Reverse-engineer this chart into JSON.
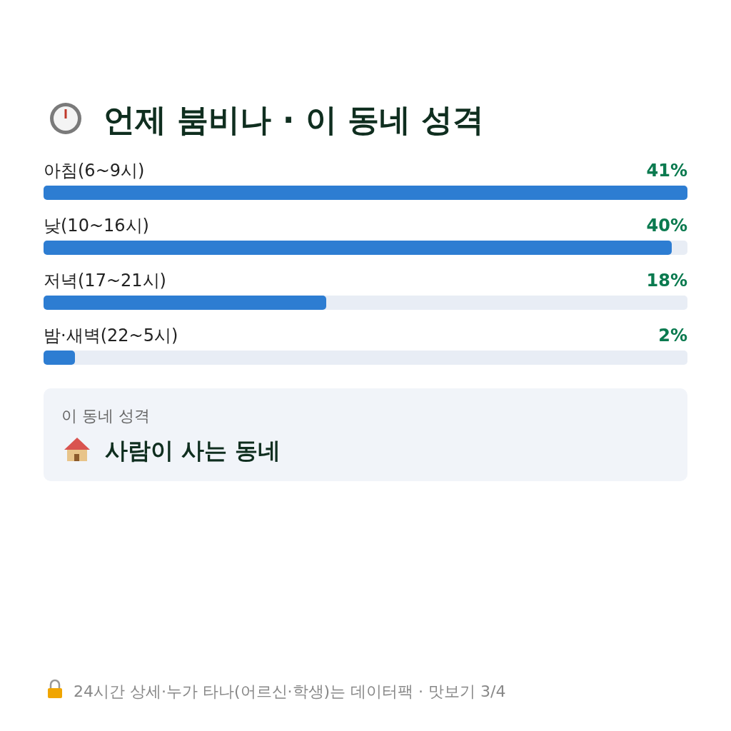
{
  "chart_data": {
    "type": "bar",
    "orientation": "horizontal",
    "title": "언제 붐비나 · 이 동네 성격",
    "categories": [
      "아침(6~9시)",
      "낮(10~16시)",
      "저녁(17~21시)",
      "밤·새벽(22~5시)"
    ],
    "values": [
      41,
      40,
      18,
      2
    ],
    "value_labels": [
      "41%",
      "40%",
      "18%",
      "2%"
    ],
    "color": "#2d7dd2",
    "annotations": [
      "이 동네 성격",
      "사람이 사는 동네",
      "24시간 상세·누가 타나(어르신·학생)는 데이터팩 · 맛보기 3/4"
    ]
  }
}
